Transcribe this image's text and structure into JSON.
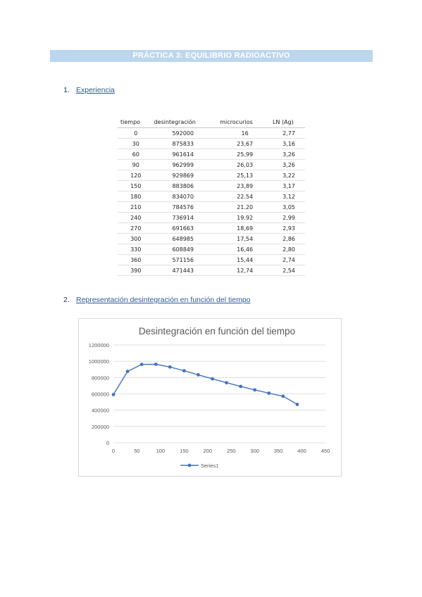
{
  "document": {
    "title": "PRÁCTICA 3: EQUILIBRIO RADIOACTIVO",
    "sections": [
      {
        "number": "1.",
        "title": "Experiencia"
      },
      {
        "number": "2.",
        "title": "Representación desintegración en función del tiempo"
      }
    ]
  },
  "table": {
    "headers": [
      "tiempo",
      "desintegración",
      "microcurios",
      "LN (Ag)"
    ],
    "rows": [
      [
        "0",
        "592000",
        "16",
        "2,77"
      ],
      [
        "30",
        "875833",
        "23,67",
        "3,16"
      ],
      [
        "60",
        "961614",
        "25,99",
        "3,26"
      ],
      [
        "90",
        "962999",
        "26,03",
        "3,26"
      ],
      [
        "120",
        "929869",
        "25,13",
        "3,22"
      ],
      [
        "150",
        "883806",
        "23,89",
        "3,17"
      ],
      [
        "180",
        "834070",
        "22.54",
        "3,12"
      ],
      [
        "210",
        "784576",
        "21.20",
        "3,05"
      ],
      [
        "240",
        "736914",
        "19.92",
        "2,99"
      ],
      [
        "270",
        "691663",
        "18,69",
        "2,93"
      ],
      [
        "300",
        "648985",
        "17,54",
        "2,86"
      ],
      [
        "330",
        "608849",
        "16,46",
        "2,80"
      ],
      [
        "360",
        "571156",
        "15,44",
        "2,74"
      ],
      [
        "390",
        "471443",
        "12,74",
        "2,54"
      ]
    ]
  },
  "chart_data": {
    "type": "line",
    "title": "Desintegración en función del tiempo",
    "xlabel": "",
    "ylabel": "",
    "x": [
      0,
      30,
      60,
      90,
      120,
      150,
      180,
      210,
      240,
      270,
      300,
      330,
      360,
      390
    ],
    "series": [
      {
        "name": "Series1",
        "values": [
          592000,
          875833,
          961614,
          962999,
          929869,
          883806,
          834070,
          784576,
          736914,
          691663,
          648985,
          608849,
          571156,
          471443
        ]
      }
    ],
    "xlim": [
      0,
      450
    ],
    "ylim": [
      0,
      1200000
    ],
    "xticks": [
      "0",
      "50",
      "100",
      "150",
      "200",
      "250",
      "300",
      "350",
      "400",
      "450"
    ],
    "yticks": [
      "0",
      "200000",
      "400000",
      "600000",
      "800000",
      "1000000",
      "1200000"
    ],
    "grid": "horizontal",
    "legend": "bottom",
    "line_color": "#4472c4"
  }
}
